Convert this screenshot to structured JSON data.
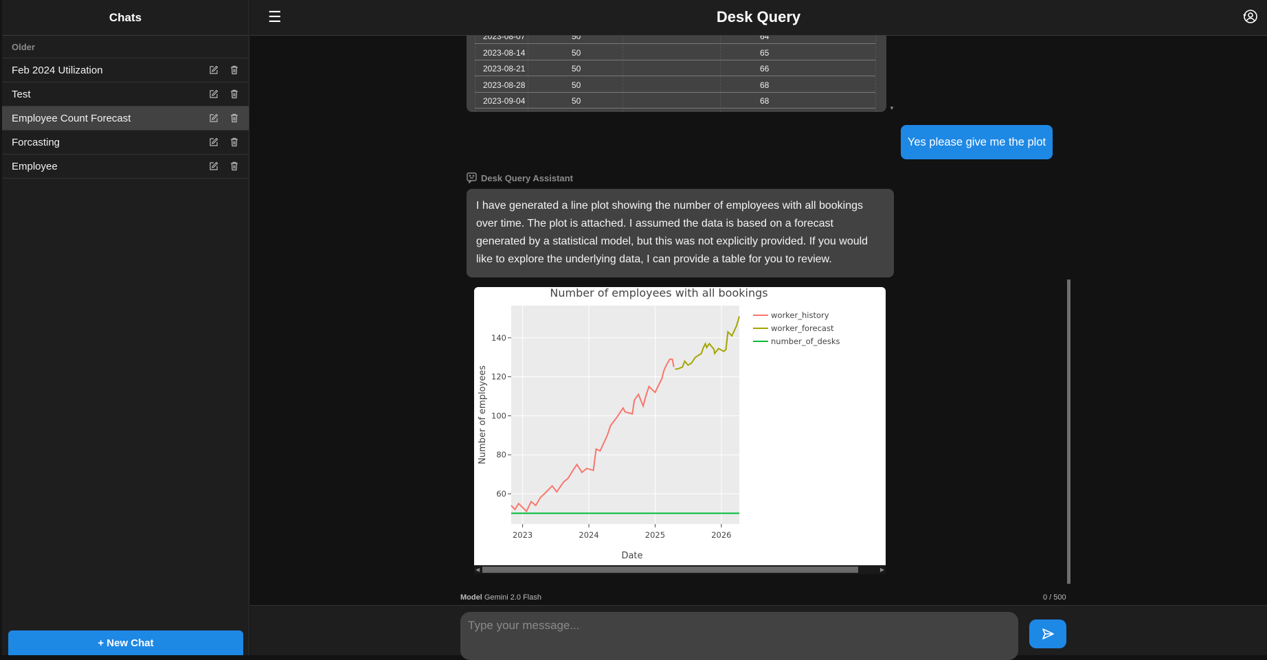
{
  "sidebar": {
    "title": "Chats",
    "section": "Older",
    "items": [
      {
        "label": "Feb 2024 Utilization",
        "active": false
      },
      {
        "label": "Test",
        "active": false
      },
      {
        "label": "Employee Count Forecast",
        "active": true
      },
      {
        "label": "Forcasting",
        "active": false
      },
      {
        "label": "Employee",
        "active": false
      }
    ],
    "new_chat": "+ New Chat"
  },
  "header": {
    "title": "Desk Query",
    "menu_icon": "hamburger-icon",
    "user_icon": "user-settings-icon"
  },
  "table": {
    "rows": [
      [
        "2023-08-07",
        "50",
        "",
        "64"
      ],
      [
        "2023-08-14",
        "50",
        "",
        "65"
      ],
      [
        "2023-08-21",
        "50",
        "",
        "66"
      ],
      [
        "2023-08-28",
        "50",
        "",
        "68"
      ],
      [
        "2023-09-04",
        "50",
        "",
        "68"
      ]
    ]
  },
  "messages": {
    "user": "Yes please give me the plot",
    "assistant_name": "Desk Query Assistant",
    "assistant": "I have generated a line plot showing the number of employees with all bookings over time. The plot is attached. I assumed the data is based on a forecast generated by a statistical model, but this was not explicitly provided. If you would like to explore the underlying data, I can provide a table for you to review."
  },
  "chart_data": {
    "type": "line",
    "title": "Number of employees with all bookings",
    "xlabel": "Date",
    "ylabel": "Number of employees",
    "xlim": [
      "2022-10-30",
      "2026-04-10"
    ],
    "ylim": [
      44.5,
      156.5
    ],
    "xticks": [
      "2023",
      "2024",
      "2025",
      "2026"
    ],
    "yticks": [
      60,
      80,
      100,
      120,
      140
    ],
    "grid": true,
    "legend": "right",
    "background": "#ebebeb",
    "series": [
      {
        "name": "worker_history",
        "color": "#f8766d",
        "x": [
          "2022-10-30",
          "2022-11-20",
          "2022-12-10",
          "2023-01-22",
          "2023-02-17",
          "2023-03-14",
          "2023-04-08",
          "2023-05-01",
          "2023-06-13",
          "2023-07-08",
          "2023-08-14",
          "2023-09-09",
          "2023-10-05",
          "2023-10-27",
          "2023-11-24",
          "2023-12-20",
          "2024-01-26",
          "2024-02-10",
          "2024-03-03",
          "2024-04-12",
          "2024-04-30",
          "2024-06-02",
          "2024-07-08",
          "2024-07-19",
          "2024-08-28",
          "2024-09-08",
          "2024-10-01",
          "2024-10-27",
          "2024-11-10",
          "2024-11-28",
          "2025-01-01",
          "2025-02-07",
          "2025-02-18",
          "2025-03-04",
          "2025-03-23",
          "2025-04-06",
          "2025-04-14"
        ],
        "y": [
          54,
          52,
          55,
          51,
          56,
          54,
          58,
          60,
          64,
          61,
          66,
          68,
          72,
          75,
          71,
          73,
          72,
          83,
          82,
          90,
          95,
          99,
          104,
          102,
          101,
          108,
          111,
          105,
          110,
          115,
          112,
          119,
          123,
          126,
          129,
          129,
          125
        ]
      },
      {
        "name": "worker_forecast",
        "color": "#a3a500",
        "x": [
          "2025-04-21",
          "2025-05-05",
          "2025-06-01",
          "2025-06-13",
          "2025-07-01",
          "2025-07-20",
          "2025-08-11",
          "2025-09-13",
          "2025-09-24",
          "2025-10-05",
          "2025-10-12",
          "2025-10-27",
          "2025-11-22",
          "2025-11-25",
          "2025-12-17",
          "2026-01-15",
          "2026-01-26",
          "2026-02-06",
          "2026-02-28",
          "2026-03-25",
          "2026-04-10"
        ],
        "y": [
          124,
          124,
          125,
          128,
          126,
          127,
          130,
          132,
          135,
          137,
          135,
          137,
          134,
          132,
          134.5,
          133,
          134,
          143,
          141,
          146,
          151
        ]
      },
      {
        "name": "number_of_desks",
        "color": "#00ba38",
        "x": [
          "2022-10-30",
          "2026-04-10"
        ],
        "y": [
          50,
          50
        ]
      }
    ]
  },
  "footer": {
    "model_label": "Model",
    "model_value": "Gemini 2.0 Flash",
    "char_count": "0 / 500",
    "placeholder": "Type your message...",
    "send_icon": "send-icon"
  }
}
